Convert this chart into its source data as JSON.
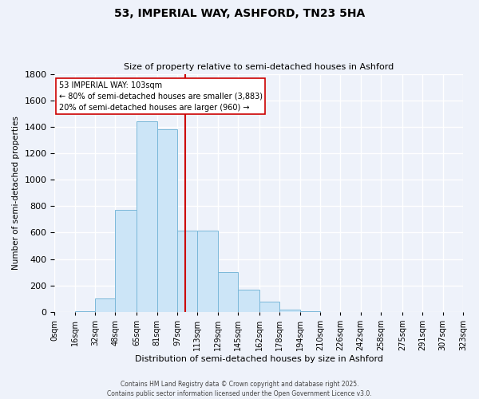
{
  "title_line1": "53, IMPERIAL WAY, ASHFORD, TN23 5HA",
  "title_line2": "Size of property relative to semi-detached houses in Ashford",
  "xlabel": "Distribution of semi-detached houses by size in Ashford",
  "ylabel": "Number of semi-detached properties",
  "bin_edges": [
    0,
    16,
    32,
    48,
    65,
    81,
    97,
    113,
    129,
    145,
    162,
    178,
    194,
    210,
    226,
    242,
    258,
    275,
    291,
    307,
    323
  ],
  "bin_labels": [
    "0sqm",
    "16sqm",
    "32sqm",
    "48sqm",
    "65sqm",
    "81sqm",
    "97sqm",
    "113sqm",
    "129sqm",
    "145sqm",
    "162sqm",
    "178sqm",
    "194sqm",
    "210sqm",
    "226sqm",
    "242sqm",
    "258sqm",
    "275sqm",
    "291sqm",
    "307sqm",
    "323sqm"
  ],
  "counts": [
    0,
    5,
    100,
    770,
    1440,
    1380,
    615,
    615,
    300,
    170,
    80,
    20,
    5,
    0,
    0,
    0,
    0,
    0,
    0,
    0
  ],
  "bar_color": "#cce5f7",
  "bar_edge_color": "#7ab8d9",
  "vline_x": 103,
  "vline_color": "#cc0000",
  "ylim": [
    0,
    1800
  ],
  "yticks": [
    0,
    200,
    400,
    600,
    800,
    1000,
    1200,
    1400,
    1600,
    1800
  ],
  "annotation_box_title": "53 IMPERIAL WAY: 103sqm",
  "annotation_line2": "← 80% of semi-detached houses are smaller (3,883)",
  "annotation_line3": "20% of semi-detached houses are larger (960) →",
  "annotation_box_color": "#ffffff",
  "annotation_box_edge": "#cc0000",
  "footer_line1": "Contains HM Land Registry data © Crown copyright and database right 2025.",
  "footer_line2": "Contains public sector information licensed under the Open Government Licence v3.0.",
  "background_color": "#eef2fa",
  "grid_color": "#ffffff"
}
